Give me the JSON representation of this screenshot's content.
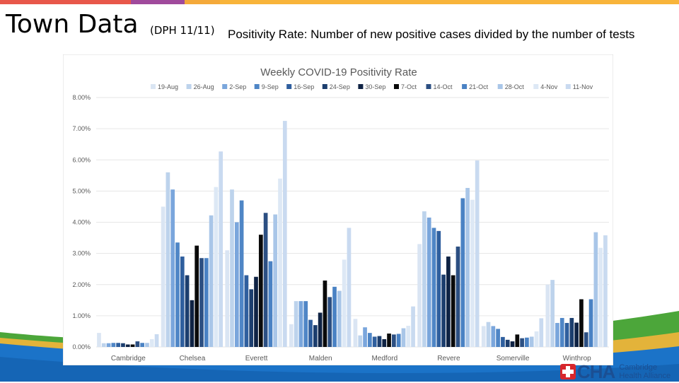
{
  "slide": {
    "title": "Town Data",
    "subtitle": "(DPH 11/11)",
    "description": "Positivity Rate: Number of new positive cases divided by the number of tests"
  },
  "logo": {
    "mark": "CHA",
    "name": "Cambridge Health Alliance"
  },
  "colors": {
    "top_red": "#e8574a",
    "top_purple": "#a04a9c",
    "top_orange": "#f4a93a",
    "wave_blue": "#1b73c8",
    "wave_green": "#4ca63a",
    "wave_gold": "#e3b33a"
  },
  "chart_data": {
    "type": "bar",
    "title": "Weekly COVID-19 Positivity Rate",
    "xlabel": "",
    "ylabel": "",
    "ylim": [
      0,
      0.08
    ],
    "yticks": [
      "0.00%",
      "1.00%",
      "2.00%",
      "3.00%",
      "4.00%",
      "5.00%",
      "6.00%",
      "7.00%",
      "8.00%"
    ],
    "legend_position": "top",
    "categories": [
      "Cambridge",
      "Chelsea",
      "Everett",
      "Malden",
      "Medford",
      "Revere",
      "Somerville",
      "Winthrop"
    ],
    "series": [
      {
        "name": "19-Aug",
        "color": "#dae5f3",
        "values": [
          0.0045,
          0.045,
          0.031,
          0.0073,
          0.009,
          0.033,
          0.0067,
          0.02
        ]
      },
      {
        "name": "26-Aug",
        "color": "#bdd3ec",
        "values": [
          0.0012,
          0.056,
          0.0505,
          0.0147,
          0.0037,
          0.0435,
          0.008,
          0.0215
        ]
      },
      {
        "name": "2-Sep",
        "color": "#7aa6dc",
        "values": [
          0.0012,
          0.0505,
          0.04,
          0.0147,
          0.0063,
          0.0415,
          0.0067,
          0.0077
        ]
      },
      {
        "name": "9-Sep",
        "color": "#4f86c6",
        "values": [
          0.0013,
          0.0335,
          0.047,
          0.0147,
          0.0045,
          0.0382,
          0.0058,
          0.0093
        ]
      },
      {
        "name": "16-Sep",
        "color": "#2f5f9e",
        "values": [
          0.0013,
          0.029,
          0.023,
          0.0087,
          0.0033,
          0.0372,
          0.0032,
          0.0077
        ]
      },
      {
        "name": "24-Sep",
        "color": "#1c3e6e",
        "values": [
          0.0012,
          0.023,
          0.0185,
          0.007,
          0.0035,
          0.0232,
          0.0023,
          0.0093
        ]
      },
      {
        "name": "30-Sep",
        "color": "#0f2344",
        "values": [
          0.0008,
          0.015,
          0.0225,
          0.011,
          0.0025,
          0.029,
          0.0018,
          0.0078
        ]
      },
      {
        "name": "7-Oct",
        "color": "#0a0a0a",
        "values": [
          0.0008,
          0.0325,
          0.036,
          0.0213,
          0.0043,
          0.023,
          0.004,
          0.0153
        ]
      },
      {
        "name": "14-Oct",
        "color": "#2c4f82",
        "values": [
          0.0018,
          0.0285,
          0.043,
          0.016,
          0.004,
          0.0322,
          0.0028,
          0.0047
        ]
      },
      {
        "name": "21-Oct",
        "color": "#4a82c4",
        "values": [
          0.0013,
          0.0285,
          0.0275,
          0.0193,
          0.0042,
          0.0477,
          0.003,
          0.0153
        ]
      },
      {
        "name": "28-Oct",
        "color": "#a9c6e8",
        "values": [
          0.0013,
          0.0422,
          0.0425,
          0.018,
          0.006,
          0.051,
          0.0033,
          0.0368
        ]
      },
      {
        "name": "4-Nov",
        "color": "#dde8f5",
        "values": [
          0.0025,
          0.0513,
          0.054,
          0.028,
          0.0068,
          0.0472,
          0.005,
          0.0318
        ]
      },
      {
        "name": "11-Nov",
        "color": "#c9daf0",
        "values": [
          0.0041,
          0.0627,
          0.0725,
          0.0382,
          0.013,
          0.0598,
          0.0092,
          0.0358
        ]
      }
    ]
  }
}
